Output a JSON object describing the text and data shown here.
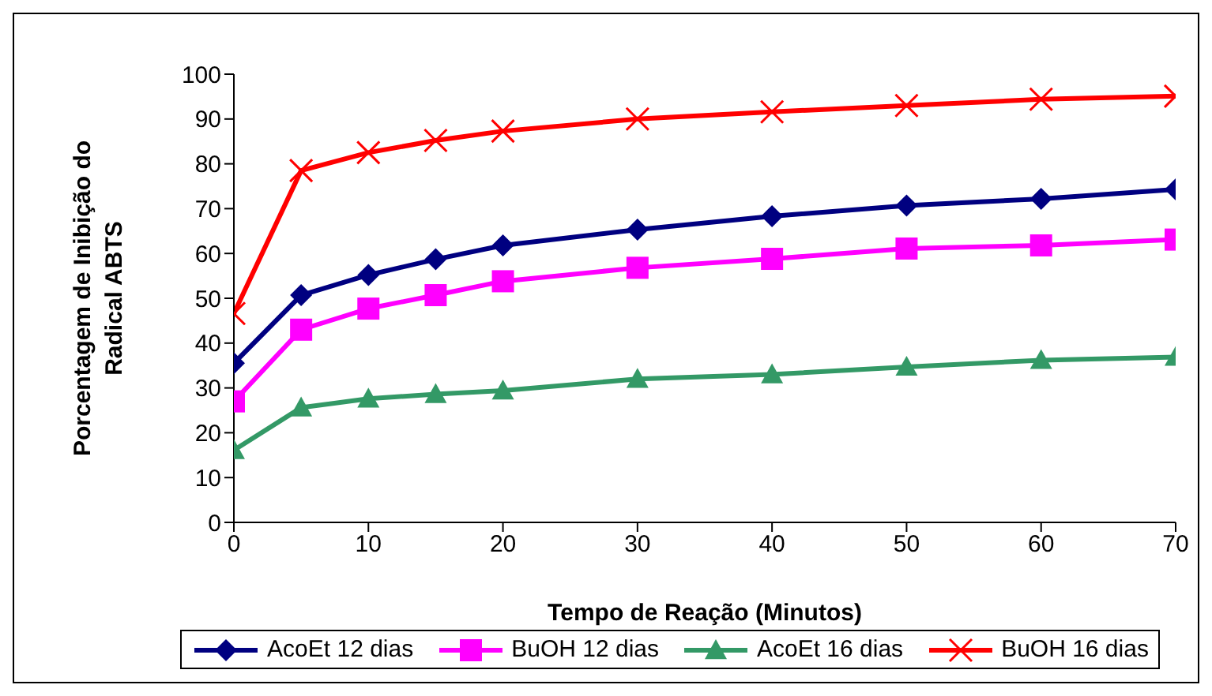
{
  "chart_data": {
    "type": "line",
    "xlabel": "Tempo de Reação (Minutos)",
    "ylabel": "Porcentagem de Inibição do Radical ABTS",
    "x": [
      0,
      5,
      10,
      15,
      20,
      30,
      40,
      50,
      60,
      70
    ],
    "xlim": [
      0,
      70
    ],
    "xticks": [
      0,
      10,
      20,
      30,
      40,
      50,
      60,
      70
    ],
    "ylim": [
      0,
      100
    ],
    "yticks": [
      0,
      10,
      20,
      30,
      40,
      50,
      60,
      70,
      80,
      90,
      100
    ],
    "grid": false,
    "legend": "bottom",
    "line_style": "solid",
    "series": [
      {
        "name": "AcoEt 12 dias",
        "color": "#000080",
        "marker": "diamond",
        "values": [
          35.5,
          50.7,
          55.2,
          58.7,
          61.8,
          65.3,
          68.3,
          70.7,
          72.2,
          74.3
        ]
      },
      {
        "name": "BuOH 12 dias",
        "color": "#ff00ff",
        "marker": "square",
        "values": [
          27,
          43,
          47.7,
          50.7,
          53.8,
          56.8,
          58.8,
          61.1,
          61.8,
          63.1
        ]
      },
      {
        "name": "AcoEt 16 dias",
        "color": "#339966",
        "marker": "triangle",
        "values": [
          16.1,
          25.6,
          27.6,
          28.6,
          29.4,
          32,
          33,
          34.7,
          36.2,
          36.9
        ]
      },
      {
        "name": "BuOH 16 dias",
        "color": "#ff0000",
        "marker": "cross",
        "values": [
          46.6,
          78.5,
          82.5,
          85.2,
          87.3,
          90,
          91.6,
          93,
          94.4,
          95.1
        ]
      }
    ]
  }
}
